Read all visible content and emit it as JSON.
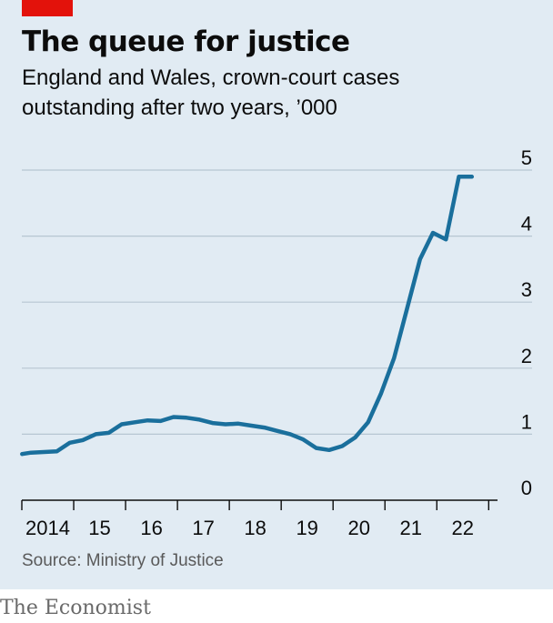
{
  "header": {
    "title": "The queue for justice",
    "subtitle_line1": "England and Wales, crown-court cases",
    "subtitle_line2": "outstanding after two years, ’000"
  },
  "footer": {
    "source": "Source: Ministry of Justice",
    "brand": "The Economist"
  },
  "colors": {
    "background": "#e1ebf3",
    "line": "#1a6f9c",
    "accent": "#e3120b",
    "grid": "#b7c6d2",
    "axis": "#0c0c0c"
  },
  "chart_data": {
    "type": "line",
    "title": "The queue for justice",
    "subtitle": "England and Wales, crown-court cases outstanding after two years, ’000",
    "xlabel": "",
    "ylabel": "",
    "x_tick_labels": [
      "2014",
      "15",
      "16",
      "17",
      "18",
      "19",
      "20",
      "21",
      "22"
    ],
    "y_tick_labels": [
      "0",
      "1",
      "2",
      "3",
      "4",
      "5"
    ],
    "ylim": [
      0,
      5
    ],
    "xlim": [
      2013.8,
      2023.2
    ],
    "y_axis_side": "right",
    "grid": true,
    "legend": "none",
    "series": [
      {
        "x": [
          2013.83,
          2014.0,
          2014.25,
          2014.5,
          2014.75,
          2015.0,
          2015.25,
          2015.5,
          2015.75,
          2016.0,
          2016.25,
          2016.5,
          2016.75,
          2017.0,
          2017.25,
          2017.5,
          2017.75,
          2018.0,
          2018.25,
          2018.5,
          2018.75,
          2019.0,
          2019.25,
          2019.5,
          2019.75,
          2020.0,
          2020.25,
          2020.5,
          2020.75,
          2021.0,
          2021.25,
          2021.5,
          2021.75,
          2022.0,
          2022.25,
          2022.5
        ],
        "values": [
          0.7,
          0.72,
          0.73,
          0.74,
          0.87,
          0.91,
          1.0,
          1.02,
          1.15,
          1.18,
          1.21,
          1.2,
          1.26,
          1.25,
          1.22,
          1.17,
          1.15,
          1.16,
          1.13,
          1.1,
          1.05,
          1.0,
          0.92,
          0.79,
          0.76,
          0.82,
          0.95,
          1.18,
          1.62,
          2.15,
          2.9,
          3.65,
          4.05,
          3.95,
          4.9,
          4.9
        ]
      }
    ]
  }
}
